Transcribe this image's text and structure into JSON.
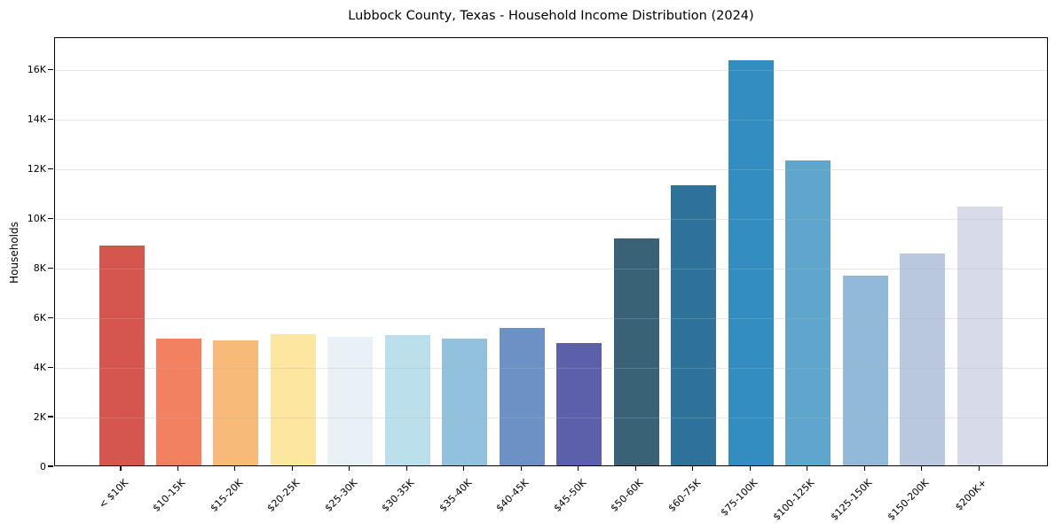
{
  "figure": {
    "background": "#ffffff",
    "frame_color": "#000000",
    "grid_color": "#e8e8e8",
    "text_color": "#000000"
  },
  "chart_data": {
    "type": "bar",
    "title": "Lubbock County, Texas - Household Income Distribution (2024)",
    "xlabel": "",
    "ylabel": "Households",
    "legend_position": "none",
    "grid": "horizontal, drawn over bars",
    "categories": [
      "< $10K",
      "$10-15K",
      "$15-20K",
      "$20-25K",
      "$25-30K",
      "$30-35K",
      "$35-40K",
      "$40-45K",
      "$45-50K",
      "$50-60K",
      "$60-75K",
      "$75-100K",
      "$100-125K",
      "$125-150K",
      "$150-200K",
      "$200K+"
    ],
    "values": [
      8880,
      5120,
      5050,
      5280,
      5200,
      5250,
      5120,
      5550,
      4930,
      9140,
      11280,
      16350,
      12310,
      7650,
      8560,
      10450
    ],
    "bar_colors": [
      "#d5564e",
      "#f08262",
      "#f8ba78",
      "#fde7a0",
      "#e8f2f6",
      "#bcdfec",
      "#91c1dc",
      "#6c92c5",
      "#5c5fa9",
      "#3a6276",
      "#2f7299",
      "#348dbf",
      "#60a6cc",
      "#93b9d8",
      "#b9c8df",
      "#d7dbe9"
    ],
    "ylim": [
      0,
      17300
    ],
    "ytick_labels": [
      "0",
      "2K",
      "4K",
      "6K",
      "8K",
      "10K",
      "12K",
      "14K",
      "16K"
    ],
    "ytick_values": [
      0,
      2000,
      4000,
      6000,
      8000,
      10000,
      12000,
      14000,
      16000
    ]
  }
}
